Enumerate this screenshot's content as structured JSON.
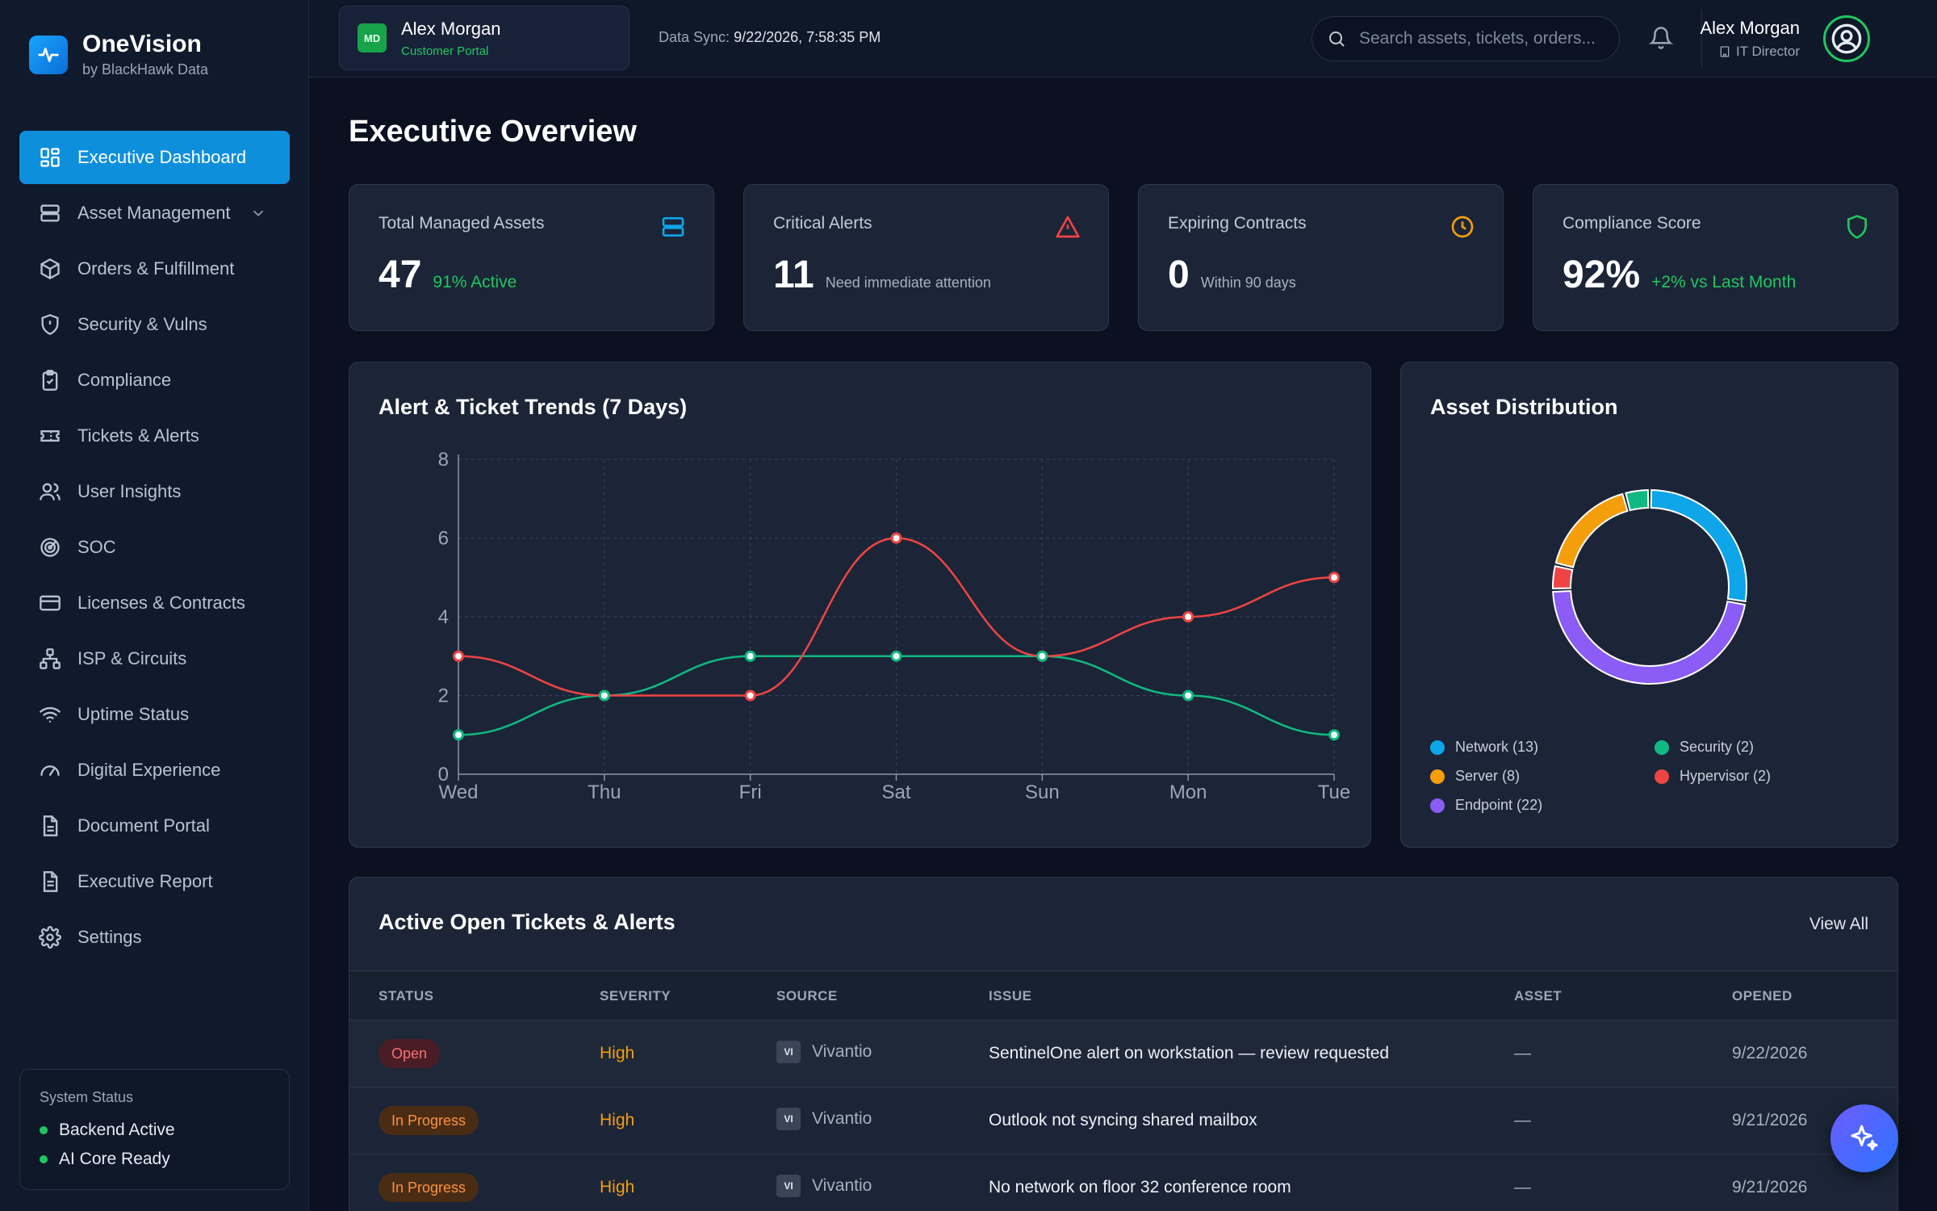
{
  "brand": {
    "name": "OneVision",
    "sub": "by BlackHawk Data"
  },
  "nav": [
    {
      "label": "Executive Dashboard",
      "icon": "dashboard-icon",
      "active": true
    },
    {
      "label": "Asset Management",
      "icon": "server-icon",
      "expandable": true
    },
    {
      "label": "Orders & Fulfillment",
      "icon": "package-icon"
    },
    {
      "label": "Security & Vulns",
      "icon": "shield-icon"
    },
    {
      "label": "Compliance",
      "icon": "clipboard-icon"
    },
    {
      "label": "Tickets & Alerts",
      "icon": "ticket-icon"
    },
    {
      "label": "User Insights",
      "icon": "users-icon"
    },
    {
      "label": "SOC",
      "icon": "radar-icon"
    },
    {
      "label": "Licenses & Contracts",
      "icon": "card-icon"
    },
    {
      "label": "ISP & Circuits",
      "icon": "network-icon"
    },
    {
      "label": "Uptime Status",
      "icon": "wifi-icon"
    },
    {
      "label": "Digital Experience",
      "icon": "gauge-icon"
    },
    {
      "label": "Document Portal",
      "icon": "document-icon"
    },
    {
      "label": "Executive Report",
      "icon": "report-icon"
    },
    {
      "label": "Settings",
      "icon": "gear-icon"
    }
  ],
  "system_status": {
    "title": "System Status",
    "items": [
      "Backend Active",
      "AI Core Ready"
    ]
  },
  "tenant": {
    "badge": "MD",
    "name": "Alex Morgan",
    "role": "Customer Portal"
  },
  "sync": {
    "label": "Data Sync:",
    "value": "9/22/2026, 7:58:35 PM"
  },
  "search": {
    "placeholder": "Search assets, tickets, orders..."
  },
  "user": {
    "name": "Alex Morgan",
    "role": "IT Director"
  },
  "page_title": "Executive Overview",
  "kpis": [
    {
      "label": "Total Managed Assets",
      "value": "47",
      "note": "91% Active",
      "icon": "server-icon",
      "color": "#0ea5e9"
    },
    {
      "label": "Critical Alerts",
      "value": "11",
      "note": "Need immediate attention",
      "icon": "warning-icon",
      "color": "#ef4444"
    },
    {
      "label": "Expiring Contracts",
      "value": "0",
      "note": "Within 90 days",
      "icon": "clock-icon",
      "color": "#f59e0b"
    },
    {
      "label": "Compliance Score",
      "value": "92%",
      "note": "+2% vs Last Month",
      "icon": "shield-check-icon",
      "color": "#22c55e"
    }
  ],
  "trend": {
    "title": "Alert & Ticket Trends (7 Days)"
  },
  "distribution": {
    "title": "Asset Distribution"
  },
  "chart_data": [
    {
      "type": "line",
      "title": "Alert & Ticket Trends (7 Days)",
      "categories": [
        "Wed",
        "Thu",
        "Fri",
        "Sat",
        "Sun",
        "Mon",
        "Tue"
      ],
      "yticks": [
        "0",
        "2",
        "4",
        "6",
        "8"
      ],
      "ylim": [
        0,
        8
      ],
      "grid": true,
      "series": [
        {
          "color": "#ef4444",
          "values": [
            3,
            2,
            2,
            6,
            3,
            4,
            5
          ]
        },
        {
          "color": "#10b981",
          "values": [
            1,
            2,
            3,
            3,
            3,
            2,
            1
          ]
        }
      ]
    },
    {
      "type": "pie",
      "title": "Asset Distribution",
      "donut": true,
      "slices": [
        {
          "label": "Network (13)",
          "value": 13,
          "color": "#0ea5e9"
        },
        {
          "label": "Endpoint (22)",
          "value": 22,
          "color": "#8b5cf6"
        },
        {
          "label": "Hypervisor (2)",
          "value": 2,
          "color": "#ef4444"
        },
        {
          "label": "Server (8)",
          "value": 8,
          "color": "#f59e0b"
        },
        {
          "label": "Security (2)",
          "value": 2,
          "color": "#10b981"
        }
      ],
      "legend_order": [
        "Network (13)",
        "Security (2)",
        "Server (8)",
        "Hypervisor (2)",
        "Endpoint (22)"
      ]
    }
  ],
  "tickets": {
    "title": "Active Open Tickets & Alerts",
    "view_all": "View All",
    "columns": [
      "STATUS",
      "SEVERITY",
      "SOURCE",
      "ISSUE",
      "ASSET",
      "OPENED"
    ],
    "rows": [
      {
        "status": "Open",
        "severity": "High",
        "source_badge": "VI",
        "source": "Vivantio",
        "issue": "SentinelOne alert on workstation — review requested",
        "asset": "—",
        "opened": "9/22/2026"
      },
      {
        "status": "In Progress",
        "severity": "High",
        "source_badge": "VI",
        "source": "Vivantio",
        "issue": "Outlook not syncing shared mailbox",
        "asset": "—",
        "opened": "9/21/2026"
      },
      {
        "status": "In Progress",
        "severity": "High",
        "source_badge": "VI",
        "source": "Vivantio",
        "issue": "No network on floor 32 conference room",
        "asset": "—",
        "opened": "9/21/2026"
      }
    ]
  }
}
